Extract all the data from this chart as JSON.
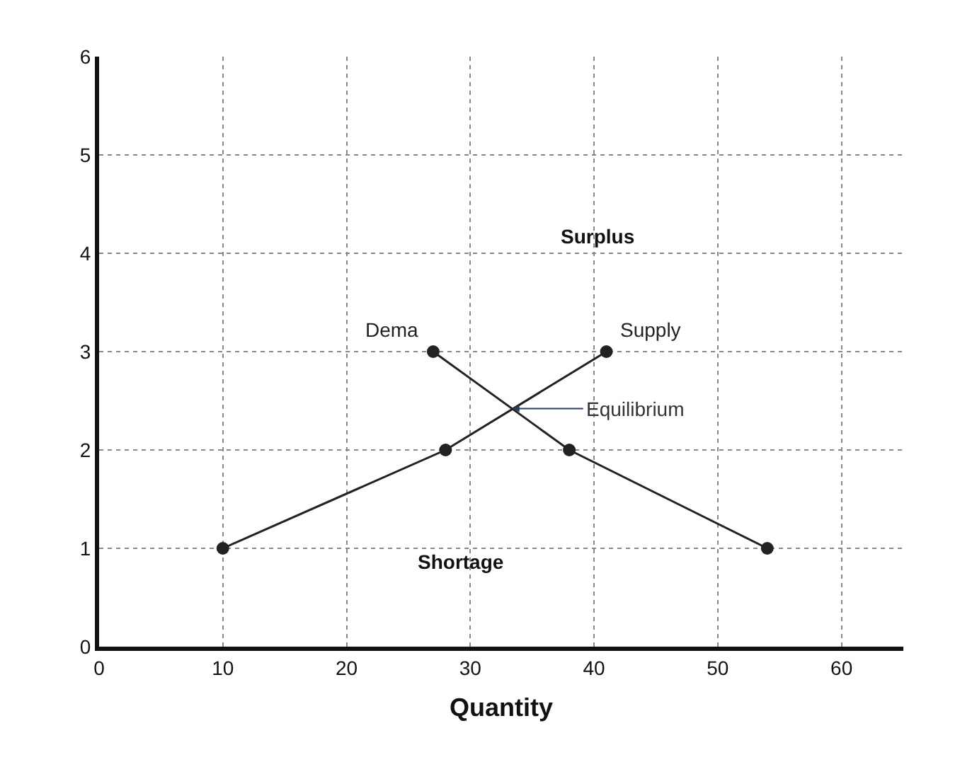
{
  "chart_data": {
    "type": "line",
    "xlabel": "Quantity",
    "series": [
      {
        "name": "Supply",
        "color": "#222222",
        "x": [
          10,
          28,
          41
        ],
        "values": [
          1,
          2,
          3
        ]
      },
      {
        "name": "Dema",
        "color": "#222222",
        "x": [
          27,
          38,
          54
        ],
        "values": [
          3,
          2,
          1
        ]
      }
    ],
    "annotations": [
      {
        "text": "Equilibrium",
        "x": 33.4,
        "y": 2.42
      },
      "Surplus",
      "Shortage"
    ],
    "xlim": [
      0,
      65
    ],
    "xticks": [
      0,
      10,
      20,
      30,
      40,
      50,
      60
    ],
    "ylim": [
      0,
      6
    ],
    "yticks": [
      0,
      1,
      2,
      3,
      4,
      5,
      6
    ],
    "grid": true,
    "legend": false,
    "marker": "circle",
    "line_style": "solid"
  }
}
